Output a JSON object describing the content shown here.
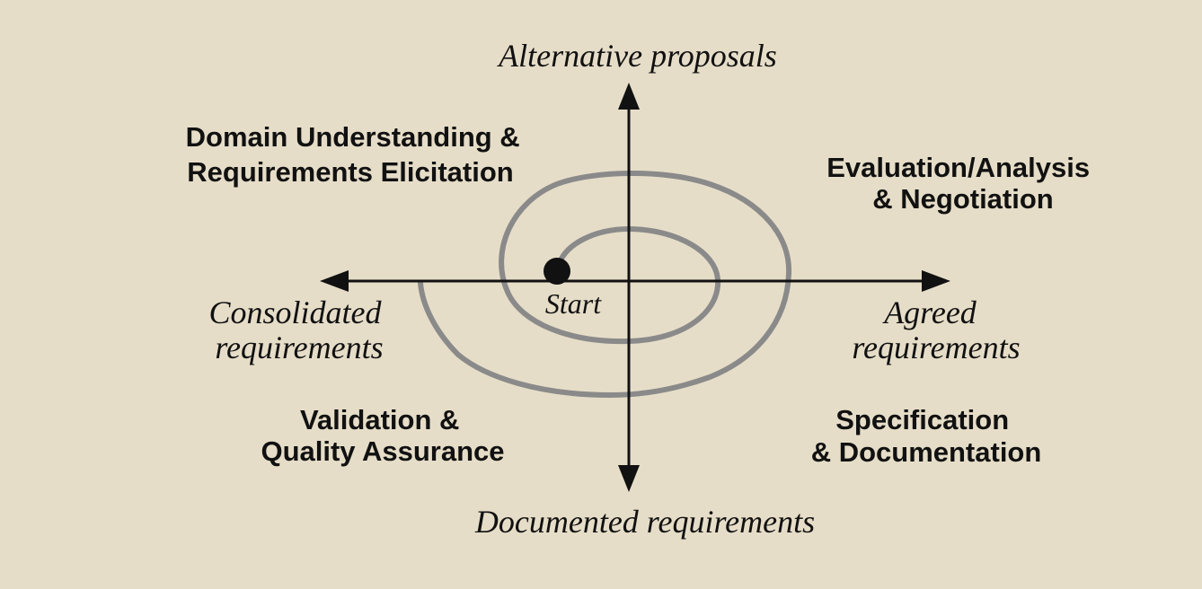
{
  "colors": {
    "background": "#e6ddc8",
    "axis": "#111111",
    "spiral": "#8a8a8a",
    "text": "#111111"
  },
  "axes": {
    "top": "Alternative proposals",
    "right": [
      "Agreed",
      "requirements"
    ],
    "bottom": "Documented requirements",
    "left": [
      "Consolidated",
      "requirements"
    ]
  },
  "quadrants": {
    "top_left": [
      "Domain Understanding &",
      "Requirements Elicitation"
    ],
    "top_right": [
      "Evaluation/Analysis",
      "& Negotiation"
    ],
    "bottom_right": [
      "Specification",
      "& Documentation"
    ],
    "bottom_left": [
      "Validation &",
      "Quality Assurance"
    ]
  },
  "start_label": "Start"
}
